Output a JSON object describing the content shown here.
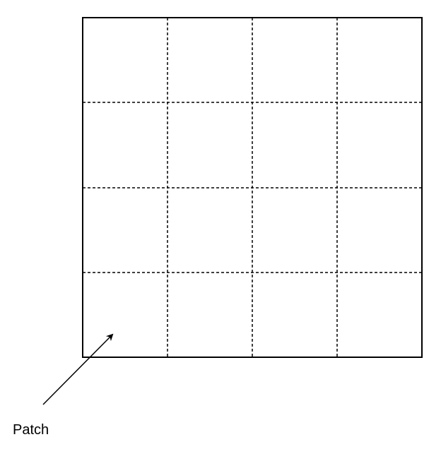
{
  "label": "Patch"
}
